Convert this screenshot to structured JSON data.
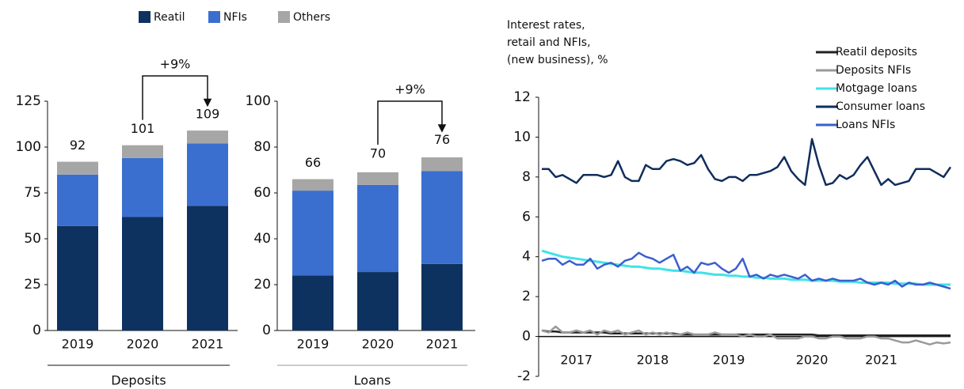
{
  "chart_data": [
    {
      "type": "bar",
      "stacked": true,
      "xlabel": "Deposits",
      "annotation": "+9%",
      "categories": [
        "2019",
        "2020",
        "2021"
      ],
      "series": [
        {
          "name": "Reatil",
          "color": "#0e3260",
          "values": [
            57,
            62,
            68
          ]
        },
        {
          "name": "NFIs",
          "color": "#3a6fd0",
          "values": [
            28,
            32,
            34
          ]
        },
        {
          "name": "Others",
          "color": "#a6a6a6",
          "values": [
            7,
            7,
            7
          ]
        }
      ],
      "totals": [
        92,
        101,
        109
      ],
      "ylim": [
        0,
        125
      ],
      "yticks": [
        0,
        25,
        50,
        75,
        100,
        125
      ]
    },
    {
      "type": "bar",
      "stacked": true,
      "xlabel": "Loans",
      "annotation": "+9%",
      "categories": [
        "2019",
        "2020",
        "2021"
      ],
      "series": [
        {
          "color": "#0e3260",
          "values": [
            24,
            25.5,
            29
          ]
        },
        {
          "color": "#3a6fd0",
          "values": [
            37,
            38,
            40.5
          ]
        },
        {
          "color": "#a6a6a6",
          "values": [
            5,
            5.5,
            6
          ]
        }
      ],
      "totals": [
        66,
        70,
        76
      ],
      "ylim": [
        0,
        100
      ],
      "yticks": [
        0,
        20,
        40,
        60,
        80,
        100
      ]
    },
    {
      "type": "line",
      "title": [
        "Interest rates,",
        "retail and NFIs,",
        "(new business), %"
      ],
      "categories": [
        null,
        null,
        null,
        null,
        null,
        "2017",
        null,
        null,
        null,
        null,
        null,
        null,
        null,
        null,
        null,
        null,
        "2018",
        null,
        null,
        null,
        null,
        null,
        null,
        null,
        null,
        null,
        null,
        "2019",
        null,
        null,
        null,
        null,
        null,
        null,
        null,
        null,
        null,
        null,
        null,
        "2020",
        null,
        null,
        null,
        null,
        null,
        null,
        null,
        null,
        null,
        "2021",
        null,
        null,
        null,
        null,
        null,
        null,
        null,
        null,
        null,
        null
      ],
      "series": [
        {
          "name": "Reatil deposits",
          "color": "#222222",
          "values": [
            0.3,
            0.25,
            0.25,
            0.2,
            0.2,
            0.2,
            0.2,
            0.2,
            0.2,
            0.2,
            0.15,
            0.15,
            0.15,
            0.15,
            0.15,
            0.15,
            0.15,
            0.15,
            0.15,
            0.15,
            0.1,
            0.1,
            0.1,
            0.1,
            0.1,
            0.1,
            0.1,
            0.1,
            0.1,
            0.1,
            0.1,
            0.1,
            0.1,
            0.1,
            0.1,
            0.1,
            0.1,
            0.1,
            0.1,
            0.1,
            0.05,
            0.05,
            0.05,
            0.05,
            0.05,
            0.05,
            0.05,
            0.05,
            0.05,
            0.05,
            0.05,
            0.05,
            0.05,
            0.05,
            0.05,
            0.05,
            0.05,
            0.05,
            0.05,
            0.05
          ]
        },
        {
          "name": "Deposits NFIs",
          "color": "#9a9a9a",
          "values": [
            0.3,
            0.2,
            0.5,
            0.2,
            0.2,
            0.3,
            0.2,
            0.3,
            0.1,
            0.3,
            0.2,
            0.3,
            0.1,
            0.2,
            0.3,
            0.1,
            0.2,
            0.1,
            0.2,
            0.1,
            0.1,
            0.2,
            0.1,
            0.1,
            0.1,
            0.2,
            0.1,
            0.1,
            0.1,
            0.0,
            0.1,
            0.0,
            0.0,
            0.1,
            -0.1,
            -0.1,
            -0.1,
            -0.1,
            0.0,
            0.0,
            -0.1,
            -0.1,
            0.0,
            0.0,
            -0.1,
            -0.1,
            -0.1,
            0.0,
            0.0,
            -0.1,
            -0.1,
            -0.2,
            -0.3,
            -0.3,
            -0.2,
            -0.3,
            -0.4,
            -0.3,
            -0.35,
            -0.3
          ]
        },
        {
          "name": "Motgage loans",
          "color": "#3fe3e8",
          "values": [
            4.3,
            4.2,
            4.1,
            4.0,
            3.95,
            3.9,
            3.85,
            3.8,
            3.75,
            3.7,
            3.65,
            3.6,
            3.55,
            3.5,
            3.5,
            3.45,
            3.4,
            3.4,
            3.35,
            3.3,
            3.3,
            3.25,
            3.2,
            3.2,
            3.15,
            3.1,
            3.1,
            3.05,
            3.05,
            3.0,
            3.0,
            2.95,
            2.95,
            2.9,
            2.9,
            2.9,
            2.85,
            2.85,
            2.85,
            2.8,
            2.8,
            2.8,
            2.8,
            2.75,
            2.75,
            2.75,
            2.7,
            2.7,
            2.7,
            2.7,
            2.7,
            2.65,
            2.65,
            2.65,
            2.65,
            2.6,
            2.6,
            2.6,
            2.6,
            2.6
          ]
        },
        {
          "name": "Consumer loans",
          "color": "#0f2d5c",
          "values": [
            8.4,
            8.4,
            8.0,
            8.1,
            7.9,
            7.7,
            8.1,
            8.1,
            8.1,
            8.0,
            8.1,
            8.8,
            8.0,
            7.8,
            7.8,
            8.6,
            8.4,
            8.4,
            8.8,
            8.9,
            8.8,
            8.6,
            8.7,
            9.1,
            8.4,
            7.9,
            7.8,
            8.0,
            8.0,
            7.8,
            8.1,
            8.1,
            8.2,
            8.3,
            8.5,
            9.0,
            8.3,
            7.9,
            7.6,
            9.9,
            8.6,
            7.6,
            7.7,
            8.1,
            7.9,
            8.1,
            8.6,
            9.0,
            8.3,
            7.6,
            7.9,
            7.6,
            7.7,
            7.8,
            8.4,
            8.4,
            8.4,
            8.2,
            8.0,
            8.5
          ]
        },
        {
          "name": "Loans NFIs",
          "color": "#3a5fcd",
          "values": [
            3.8,
            3.9,
            3.9,
            3.6,
            3.8,
            3.6,
            3.6,
            3.9,
            3.4,
            3.6,
            3.7,
            3.5,
            3.8,
            3.9,
            4.2,
            4.0,
            3.9,
            3.7,
            3.9,
            4.1,
            3.3,
            3.5,
            3.2,
            3.7,
            3.6,
            3.7,
            3.4,
            3.2,
            3.4,
            3.9,
            3.0,
            3.1,
            2.9,
            3.1,
            3.0,
            3.1,
            3.0,
            2.9,
            3.1,
            2.8,
            2.9,
            2.8,
            2.9,
            2.8,
            2.8,
            2.8,
            2.9,
            2.7,
            2.6,
            2.7,
            2.6,
            2.8,
            2.5,
            2.7,
            2.6,
            2.6,
            2.7,
            2.6,
            2.5,
            2.4
          ]
        }
      ],
      "ylim": [
        -2,
        12
      ],
      "yticks": [
        -2,
        0,
        2,
        4,
        6,
        8,
        10,
        12
      ]
    }
  ]
}
